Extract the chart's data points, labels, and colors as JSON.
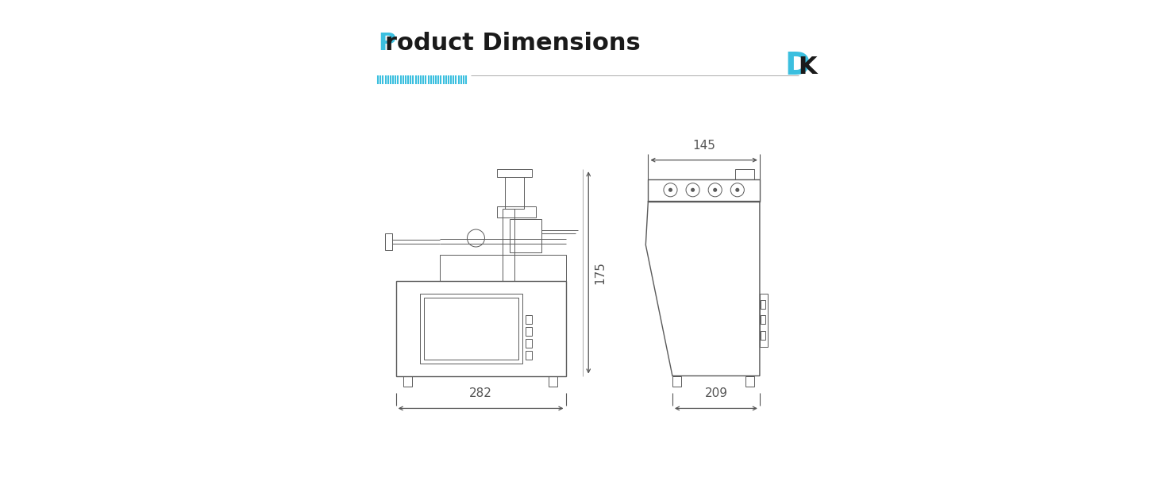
{
  "title": "Product Dimensions",
  "title_P_color": "#3bbfdf",
  "title_rest_color": "#1a1a1a",
  "background_color": "#ffffff",
  "line_color": "#5a5a5a",
  "dim_line_color": "#555555",
  "logo_D_color": "#3bbfdf",
  "logo_K_color": "#1a1a1a",
  "decoration_bar_color": "#3bbfdf",
  "dim_text_color": "#555555",
  "front_view": {
    "label_width": "282",
    "label_height": "175"
  },
  "side_view": {
    "label_width": "209",
    "label_height": "145"
  }
}
